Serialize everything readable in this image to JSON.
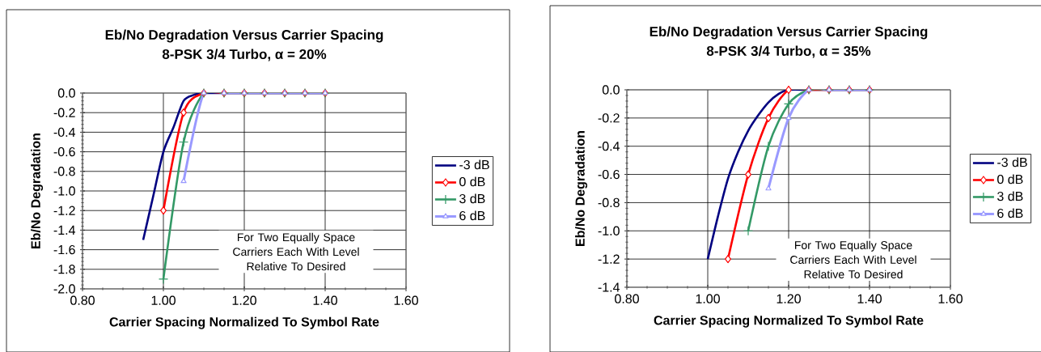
{
  "chart_data": [
    {
      "type": "line",
      "title": "Eb/No Degradation Versus Carrier Spacing",
      "subtitle": "8-PSK 3/4 Turbo, α = 20%",
      "xlabel": "Carrier Spacing Normalized To Symbol Rate",
      "ylabel": "Eb/No Degradation",
      "annotations": [
        "For Two Equally Space Carriers Each With Level Relative To Desired"
      ],
      "xlim": [
        0.8,
        1.6
      ],
      "xticks": [
        {
          "value": 0.8,
          "label": "0.80"
        },
        {
          "value": 1.0,
          "label": "1.00"
        },
        {
          "value": 1.2,
          "label": "1.20"
        },
        {
          "value": 1.4,
          "label": "1.40"
        },
        {
          "value": 1.6,
          "label": "1.60"
        }
      ],
      "ylim": [
        -2.0,
        0.0
      ],
      "yticks": [
        {
          "value": -2.0,
          "label": "-2.0"
        },
        {
          "value": -1.8,
          "label": "-1.8"
        },
        {
          "value": -1.6,
          "label": "-1.6"
        },
        {
          "value": -1.4,
          "label": "-1.4"
        },
        {
          "value": -1.2,
          "label": "-1.2"
        },
        {
          "value": -1.0,
          "label": "-1.0"
        },
        {
          "value": -0.8,
          "label": "-0.8"
        },
        {
          "value": -0.6,
          "label": "-0.6"
        },
        {
          "value": -0.4,
          "label": "-0.4"
        },
        {
          "value": -0.2,
          "label": "-0.2"
        },
        {
          "value": 0.0,
          "label": "0.0"
        }
      ],
      "grid": true,
      "legend": "right",
      "series": [
        {
          "name": "-3 dB",
          "color": "#000080",
          "marker": "none",
          "x": [
            0.95,
            0.975,
            1.0,
            1.025,
            1.05,
            1.075,
            1.1,
            1.15,
            1.2,
            1.25,
            1.3,
            1.35,
            1.4
          ],
          "values": [
            -1.5,
            -1.05,
            -0.6,
            -0.35,
            -0.08,
            -0.02,
            0,
            0,
            0,
            0,
            0,
            0,
            0
          ]
        },
        {
          "name": "0 dB",
          "color": "#ff0000",
          "marker": "diamond",
          "x": [
            1.0,
            1.05,
            1.1,
            1.15,
            1.2,
            1.25,
            1.3,
            1.35,
            1.4
          ],
          "values": [
            -1.2,
            -0.2,
            0,
            0,
            0,
            0,
            0,
            0,
            0
          ]
        },
        {
          "name": "3 dB",
          "color": "#339966",
          "marker": "cross",
          "x": [
            1.0,
            1.05,
            1.1,
            1.15,
            1.2,
            1.25,
            1.3,
            1.35,
            1.4
          ],
          "values": [
            -1.9,
            -0.5,
            0,
            0,
            0,
            0,
            0,
            0,
            0
          ]
        },
        {
          "name": "6 dB",
          "color": "#9999ff",
          "marker": "triangle",
          "x": [
            1.05,
            1.1,
            1.15,
            1.2,
            1.25,
            1.3,
            1.35,
            1.4
          ],
          "values": [
            -0.9,
            0,
            0,
            0,
            0,
            0,
            0,
            0
          ]
        }
      ]
    },
    {
      "type": "line",
      "title": "Eb/No Degradation Versus Carrier Spacing",
      "subtitle": "8-PSK 3/4 Turbo, α = 35%",
      "xlabel": "Carrier Spacing Normalized To Symbol Rate",
      "ylabel": "Eb/No Degradation",
      "annotations": [
        "For Two Equally Space Carriers Each With Level Relative To Desired"
      ],
      "xlim": [
        0.8,
        1.6
      ],
      "xticks": [
        {
          "value": 0.8,
          "label": "0.80"
        },
        {
          "value": 1.0,
          "label": "1.00"
        },
        {
          "value": 1.2,
          "label": "1.20"
        },
        {
          "value": 1.4,
          "label": "1.40"
        },
        {
          "value": 1.6,
          "label": "1.60"
        }
      ],
      "ylim": [
        -1.4,
        0.0
      ],
      "yticks": [
        {
          "value": -1.4,
          "label": "-1.4"
        },
        {
          "value": -1.2,
          "label": "-1.2"
        },
        {
          "value": -1.0,
          "label": "-1.0"
        },
        {
          "value": -0.8,
          "label": "-0.8"
        },
        {
          "value": -0.6,
          "label": "-0.6"
        },
        {
          "value": -0.4,
          "label": "-0.4"
        },
        {
          "value": -0.2,
          "label": "-0.2"
        },
        {
          "value": 0.0,
          "label": "0.0"
        }
      ],
      "grid": true,
      "legend": "right",
      "series": [
        {
          "name": "-3 dB",
          "color": "#000080",
          "marker": "none",
          "x": [
            1.0,
            1.025,
            1.05,
            1.075,
            1.1,
            1.125,
            1.15,
            1.175,
            1.2,
            1.25,
            1.3,
            1.35,
            1.4
          ],
          "values": [
            -1.2,
            -0.9,
            -0.63,
            -0.44,
            -0.29,
            -0.18,
            -0.09,
            -0.03,
            0,
            0,
            0,
            0,
            0
          ]
        },
        {
          "name": "0 dB",
          "color": "#ff0000",
          "marker": "diamond",
          "x": [
            1.05,
            1.1,
            1.15,
            1.2,
            1.25,
            1.3,
            1.35,
            1.4
          ],
          "values": [
            -1.2,
            -0.6,
            -0.2,
            0,
            0,
            0,
            0,
            0
          ]
        },
        {
          "name": "3 dB",
          "color": "#339966",
          "marker": "cross",
          "x": [
            1.1,
            1.15,
            1.2,
            1.25,
            1.3,
            1.35,
            1.4
          ],
          "values": [
            -1.0,
            -0.4,
            -0.1,
            0,
            0,
            0,
            0
          ]
        },
        {
          "name": "6 dB",
          "color": "#9999ff",
          "marker": "triangle",
          "x": [
            1.15,
            1.2,
            1.25,
            1.3,
            1.35,
            1.4
          ],
          "values": [
            -0.7,
            -0.2,
            0,
            0,
            0,
            0
          ]
        }
      ]
    }
  ]
}
